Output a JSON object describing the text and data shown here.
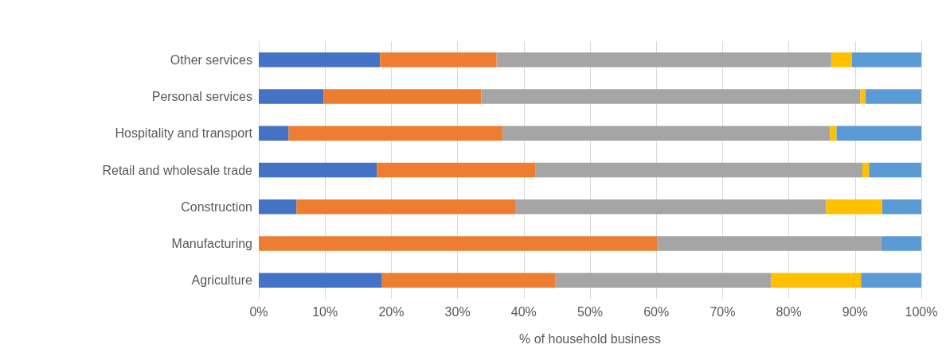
{
  "chart_data": {
    "type": "bar",
    "orientation": "horizontal",
    "stacked": true,
    "xlabel": "% of household business",
    "categories": [
      "Other services",
      "Personal services",
      "Hospitality and transport",
      "Retail and wholesale trade",
      "Construction",
      "Manufacturing",
      "Agriculture"
    ],
    "series": [
      {
        "color": "#4472c4",
        "values": [
          18.3,
          9.8,
          4.5,
          17.8,
          5.7,
          0,
          18.6
        ]
      },
      {
        "color": "#ed7d31",
        "values": [
          17.6,
          23.8,
          32.3,
          24.0,
          33.0,
          60.1,
          26.2
        ]
      },
      {
        "color": "#a5a5a5",
        "values": [
          50.5,
          57.2,
          49.4,
          49.3,
          46.9,
          33.9,
          32.5
        ]
      },
      {
        "color": "#ffc000",
        "values": [
          3.1,
          0.8,
          1.0,
          1.0,
          8.5,
          0,
          13.6
        ]
      },
      {
        "color": "#5b9bd5",
        "values": [
          10.5,
          8.4,
          12.8,
          7.9,
          5.9,
          6.0,
          9.1
        ]
      }
    ],
    "xlim": [
      0,
      100
    ],
    "xticks": [
      {
        "value": 0,
        "label": "0%"
      },
      {
        "value": 10,
        "label": "10%"
      },
      {
        "value": 20,
        "label": "20%"
      },
      {
        "value": 30,
        "label": "30%"
      },
      {
        "value": 40,
        "label": "40%"
      },
      {
        "value": 50,
        "label": "50%"
      },
      {
        "value": 60,
        "label": "60%"
      },
      {
        "value": 70,
        "label": "70%"
      },
      {
        "value": 80,
        "label": "80%"
      },
      {
        "value": 90,
        "label": "90%"
      },
      {
        "value": 100,
        "label": "100%"
      }
    ],
    "grid": "x"
  }
}
